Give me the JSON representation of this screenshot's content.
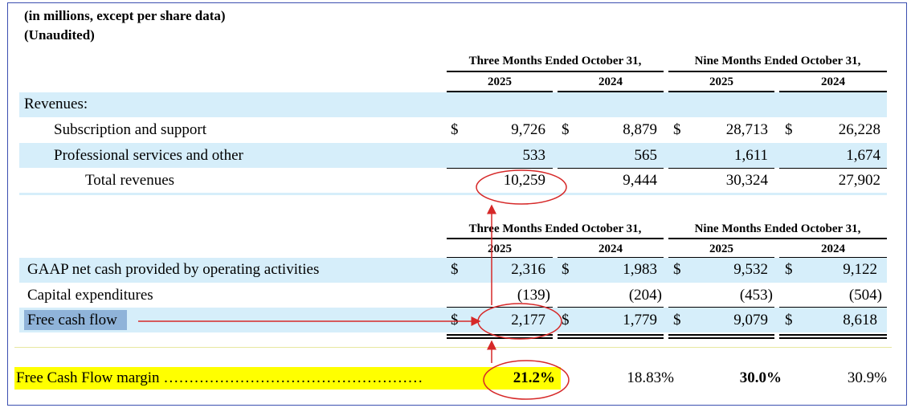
{
  "header": {
    "line1": "(in millions, except per share data)",
    "line2": "(Unaudited)"
  },
  "table1": {
    "group_headers": [
      "Three Months Ended October 31,",
      "Nine Months Ended October 31,"
    ],
    "years": [
      "2025",
      "2024",
      "2025",
      "2024"
    ],
    "section_label": "Revenues:",
    "rows": [
      {
        "label": "Subscription and support",
        "values": [
          "9,726",
          "8,879",
          "28,713",
          "26,228"
        ]
      },
      {
        "label": "Professional services and other",
        "values": [
          "533",
          "565",
          "1,611",
          "1,674"
        ]
      },
      {
        "label": "Total revenues",
        "values": [
          "10,259",
          "9,444",
          "30,324",
          "27,902"
        ]
      }
    ]
  },
  "table2": {
    "group_headers": [
      "Three Months Ended October 31,",
      "Nine Months Ended October 31,"
    ],
    "years": [
      "2025",
      "2024",
      "2025",
      "2024"
    ],
    "rows": [
      {
        "label": "GAAP net cash provided by operating activities",
        "values": [
          "2,316",
          "1,983",
          "9,532",
          "9,122"
        ]
      },
      {
        "label": "Capital expenditures",
        "values": [
          "(139)",
          "(204)",
          "(453)",
          "(504)"
        ]
      },
      {
        "label": "Free cash flow",
        "values": [
          "2,177",
          "1,779",
          "9,079",
          "8,618"
        ]
      }
    ]
  },
  "currency_symbol": "$",
  "margin": {
    "label": "Free Cash Flow margin",
    "dots": "……………………………………………",
    "values": [
      "21.2%",
      "18.83%",
      "30.0%",
      "30.9%"
    ]
  },
  "colors": {
    "band": "#d6eefa",
    "highlight": "#ffff00",
    "annotation": "#d62828",
    "label_highlight": "#8fb3d9"
  }
}
